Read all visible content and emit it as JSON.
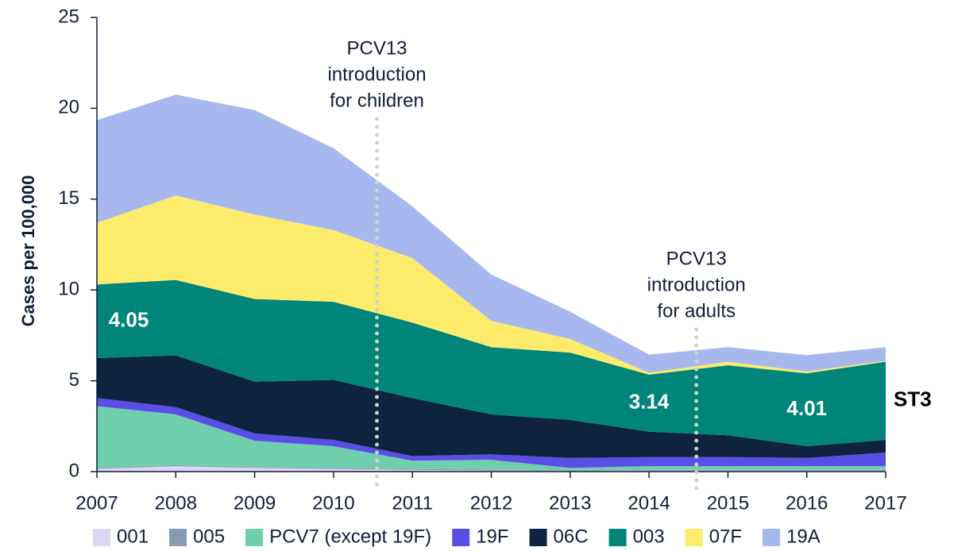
{
  "chart_data": {
    "type": "stacked_area",
    "y_label": "Cases per 100,000",
    "x": [
      2007,
      2008,
      2009,
      2010,
      2011,
      2012,
      2013,
      2014,
      2015,
      2016,
      2017
    ],
    "xlim": [
      2007,
      2017
    ],
    "xticks": [
      2007,
      2008,
      2009,
      2010,
      2011,
      2012,
      2013,
      2014,
      2015,
      2016,
      2017
    ],
    "ylim": [
      0,
      25
    ],
    "yticks": [
      0,
      5,
      10,
      15,
      20,
      25
    ],
    "series": [
      {
        "name": "001",
        "color": "#dcd6f7",
        "values": [
          0.15,
          0.3,
          0.2,
          0.15,
          0.1,
          0.05,
          0.05,
          0.05,
          0.05,
          0.05,
          0.05
        ]
      },
      {
        "name": "005",
        "color": "#8a9bb0",
        "values": [
          0.05,
          0.05,
          0.05,
          0.05,
          0.05,
          0.05,
          0.05,
          0.05,
          0.05,
          0.05,
          0.05
        ]
      },
      {
        "name": "PCV7 (except 19F)",
        "color": "#6fcfad",
        "values": [
          3.4,
          2.8,
          1.45,
          1.2,
          0.45,
          0.55,
          0.1,
          0.2,
          0.2,
          0.2,
          0.2
        ]
      },
      {
        "name": "19F",
        "color": "#5a4ee6",
        "values": [
          0.45,
          0.4,
          0.4,
          0.35,
          0.25,
          0.3,
          0.55,
          0.5,
          0.5,
          0.45,
          0.75
        ]
      },
      {
        "name": "06C",
        "color": "#0e2340",
        "values": [
          2.2,
          2.85,
          2.85,
          3.3,
          3.2,
          2.2,
          2.1,
          1.4,
          1.2,
          0.65,
          0.7
        ]
      },
      {
        "name": "003",
        "color": "#00857a",
        "label": "ST3",
        "values": [
          4.05,
          4.15,
          4.55,
          4.3,
          4.15,
          3.7,
          3.7,
          3.14,
          3.85,
          4.01,
          4.3
        ],
        "value_labels": [
          "4.05",
          null,
          null,
          null,
          null,
          null,
          null,
          "3.14",
          null,
          "4.01",
          null
        ]
      },
      {
        "name": "07F",
        "color": "#fdec6b",
        "values": [
          3.4,
          4.65,
          4.65,
          3.95,
          3.55,
          1.45,
          0.75,
          0.1,
          0.2,
          0.1,
          0.05
        ]
      },
      {
        "name": "19A",
        "color": "#a7b8ef",
        "values": [
          5.65,
          5.55,
          5.75,
          4.5,
          2.85,
          2.55,
          1.5,
          1.0,
          0.8,
          0.9,
          0.75
        ]
      }
    ],
    "annotations": [
      {
        "x": 2010.55,
        "text": [
          "PCV13",
          "introduction",
          "for children"
        ]
      },
      {
        "x": 2014.6,
        "text": [
          "PCV13",
          "introduction",
          "for adults"
        ]
      }
    ]
  }
}
